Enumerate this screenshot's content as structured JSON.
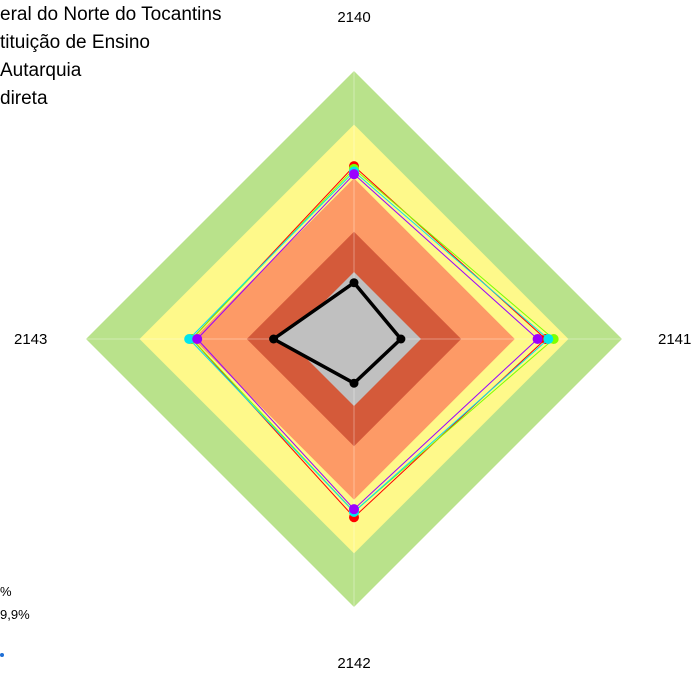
{
  "legend": {
    "entries": [
      "eral do Norte do Tocantins",
      "tituição de Ensino",
      " Autarquia",
      "direta"
    ]
  },
  "bottom_left": {
    "line1": "%",
    "line2": "9,9%",
    "dot_color": "#1f6fd6"
  },
  "chart_data": {
    "type": "radar",
    "axes": [
      "2140",
      "2141",
      "2142",
      "2143"
    ],
    "rmax": 100,
    "bands": [
      {
        "from": 0,
        "to": 25,
        "color": "#c0c0c0"
      },
      {
        "from": 25,
        "to": 40,
        "color": "#d45a3a"
      },
      {
        "from": 40,
        "to": 60,
        "color": "#fd9a66"
      },
      {
        "from": 60,
        "to": 80,
        "color": "#fef98a"
      },
      {
        "from": 80,
        "to": 100,
        "color": "#b9e28b"
      }
    ],
    "center_fill": "#c0c0c0",
    "series": [
      {
        "color": "#ff0000",
        "values": [
          64.5,
          71.5,
          66.5,
          60.5
        ],
        "marker": true
      },
      {
        "color": "#7fff00",
        "values": [
          63.5,
          74.5,
          64.5,
          60.5
        ],
        "marker": true
      },
      {
        "color": "#00e5ee",
        "values": [
          62.5,
          72.5,
          64.5,
          61.5
        ],
        "marker": true
      },
      {
        "color": "#9b00ff",
        "values": [
          61.5,
          68.5,
          63.5,
          58.5
        ],
        "marker": true
      },
      {
        "color": "#000000",
        "values": [
          21,
          17.5,
          16.5,
          30
        ],
        "marker": true,
        "bold": true
      }
    ]
  }
}
